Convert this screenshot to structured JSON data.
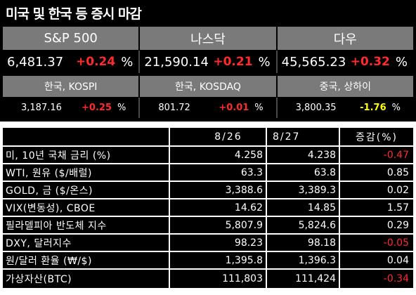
{
  "board": {
    "title": "미국 및 한국 등 증시 마감",
    "major": [
      {
        "name": "S&P 500",
        "value": "6,481.37",
        "change": "+0.24",
        "unit": "%"
      },
      {
        "name": "나스닥",
        "value": "21,590.14",
        "change": "+0.21",
        "unit": "%"
      },
      {
        "name": "다우",
        "value": "45,565.23",
        "change": "+0.32",
        "unit": "%"
      }
    ],
    "minor": [
      {
        "name": "한국, KOSPI",
        "value": "3,187.16",
        "change": "+0.25",
        "unit": "%"
      },
      {
        "name": "한국, KOSDAQ",
        "value": "801.72",
        "change": "+0.01",
        "unit": "%"
      },
      {
        "name": "중국, 상하이",
        "value": "3,800.35",
        "change": "-1.76",
        "unit": "%"
      }
    ]
  },
  "table": {
    "headers": [
      "",
      "8/26",
      "8/27",
      "증감(%)"
    ],
    "rows": [
      {
        "label": "미, 10년 국채 금리 (%)",
        "v1": "4.258",
        "v2": "4.238",
        "chg": "-0.47"
      },
      {
        "label": "WTI, 원유 ($/배럴)",
        "v1": "63.3",
        "v2": "63.8",
        "chg": "0.85"
      },
      {
        "label": "GOLD, 금 ($/온스)",
        "v1": "3,388.6",
        "v2": "3,389.3",
        "chg": "0.02"
      },
      {
        "label": "VIX(변동성), CBOE",
        "v1": "14.62",
        "v2": "14.85",
        "chg": "1.57"
      },
      {
        "label": "필라델피아 반도체 지수",
        "v1": "5,807.9",
        "v2": "5,824.6",
        "chg": "0.29"
      },
      {
        "label": "DXY, 달러지수",
        "v1": "98.23",
        "v2": "98.18",
        "chg": "-0.05"
      },
      {
        "label": "원/달러 환율 (₩/$)",
        "v1": "1,395.8",
        "v2": "1,396.3",
        "chg": "0.04"
      },
      {
        "label": "가상자산(BTC)",
        "v1": "111,803",
        "v2": "111,424",
        "chg": "-0.34"
      }
    ]
  },
  "colors": {
    "up": "#ff2a2a",
    "down_yellow": "#ffff00",
    "header_bg": "#7a7a7a",
    "board_bg": "#000000"
  }
}
